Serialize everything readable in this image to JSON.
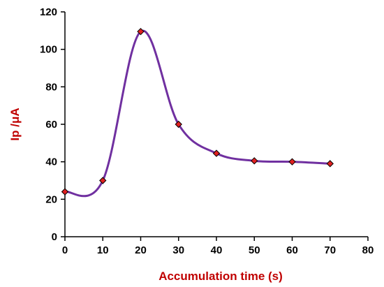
{
  "chart_data": {
    "type": "scatter",
    "title": "",
    "xlabel": "Accumulation time (s)",
    "ylabel": "Ip /μA",
    "xlim": [
      0,
      80
    ],
    "ylim": [
      0,
      120
    ],
    "xticks": [
      0,
      10,
      20,
      30,
      40,
      50,
      60,
      70,
      80
    ],
    "yticks": [
      0,
      20,
      40,
      60,
      80,
      100,
      120
    ],
    "grid": false,
    "legend": "none",
    "series": [
      {
        "x": [
          0,
          10,
          20,
          30,
          40,
          50,
          60,
          70
        ],
        "y": [
          24,
          30,
          109.5,
          60,
          44.5,
          40.5,
          40,
          39
        ]
      }
    ],
    "line_style": "smoothed",
    "colors": {
      "line": "#7030a0",
      "marker_fill": "#e02020",
      "marker_stroke": "#000000",
      "axis_title": "#c00000",
      "axis": "#000000"
    }
  }
}
